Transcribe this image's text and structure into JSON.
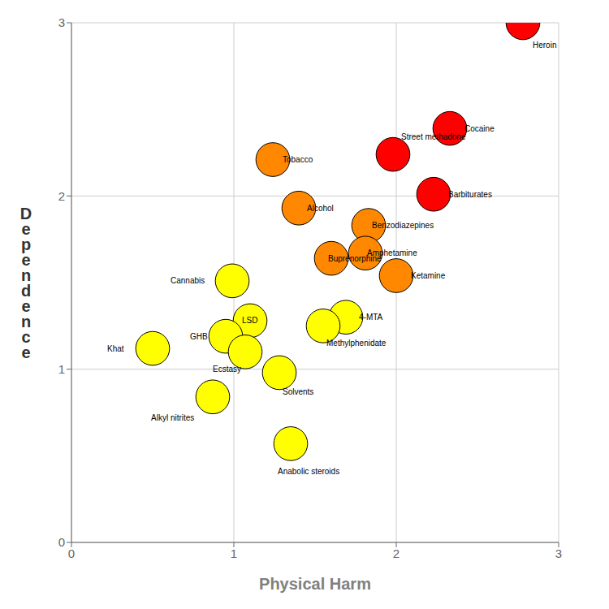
{
  "chart_data": {
    "type": "scatter",
    "xlabel": "Physical Harm",
    "ylabel": "D\ne\np\ne\nn\nd\ne\nn\nc\ne",
    "names": [
      "Heroin",
      "Cocaine",
      "Barbiturates",
      "Street methadone",
      "Alcohol",
      "Ketamine",
      "Benzodiazepines",
      "Amphetamine",
      "Tobacco",
      "Buprenorphine",
      "Cannabis",
      "Solvents",
      "4-MTA",
      "LSD",
      "Methylphenidate",
      "Anabolic steroids",
      "GHB",
      "Ecstasy",
      "Alkyl nitrites",
      "Khat"
    ],
    "x": [
      2.78,
      2.33,
      2.23,
      1.98,
      1.4,
      2.0,
      1.83,
      1.81,
      1.24,
      1.6,
      0.99,
      1.28,
      1.69,
      1.1,
      1.55,
      1.35,
      0.95,
      1.07,
      0.87,
      0.5
    ],
    "values": [
      3.0,
      2.39,
      2.01,
      2.24,
      1.93,
      1.54,
      1.83,
      1.67,
      2.21,
      1.64,
      1.51,
      0.98,
      1.3,
      1.28,
      1.25,
      0.57,
      1.19,
      1.1,
      0.84,
      1.12
    ],
    "colors": [
      "#ff0000",
      "#ff0000",
      "#ff0000",
      "#ff0000",
      "#ff8800",
      "#ff8800",
      "#ff8800",
      "#ff8800",
      "#ff8800",
      "#ff8800",
      "#ffff00",
      "#ffff00",
      "#ffff00",
      "#ffff00",
      "#ffff00",
      "#ffff00",
      "#ffff00",
      "#ffff00",
      "#ffff00",
      "#ffff00"
    ],
    "sizes": [
      900,
      900,
      900,
      900,
      900,
      900,
      900,
      900,
      900,
      900,
      900,
      900,
      900,
      900,
      900,
      900,
      900,
      900,
      900,
      900
    ],
    "xlim": [
      0,
      3
    ],
    "ylim": [
      0,
      3
    ],
    "xticks": [
      0,
      1,
      2,
      3
    ],
    "yticks": [
      0,
      1,
      2,
      3
    ],
    "grid": true
  }
}
